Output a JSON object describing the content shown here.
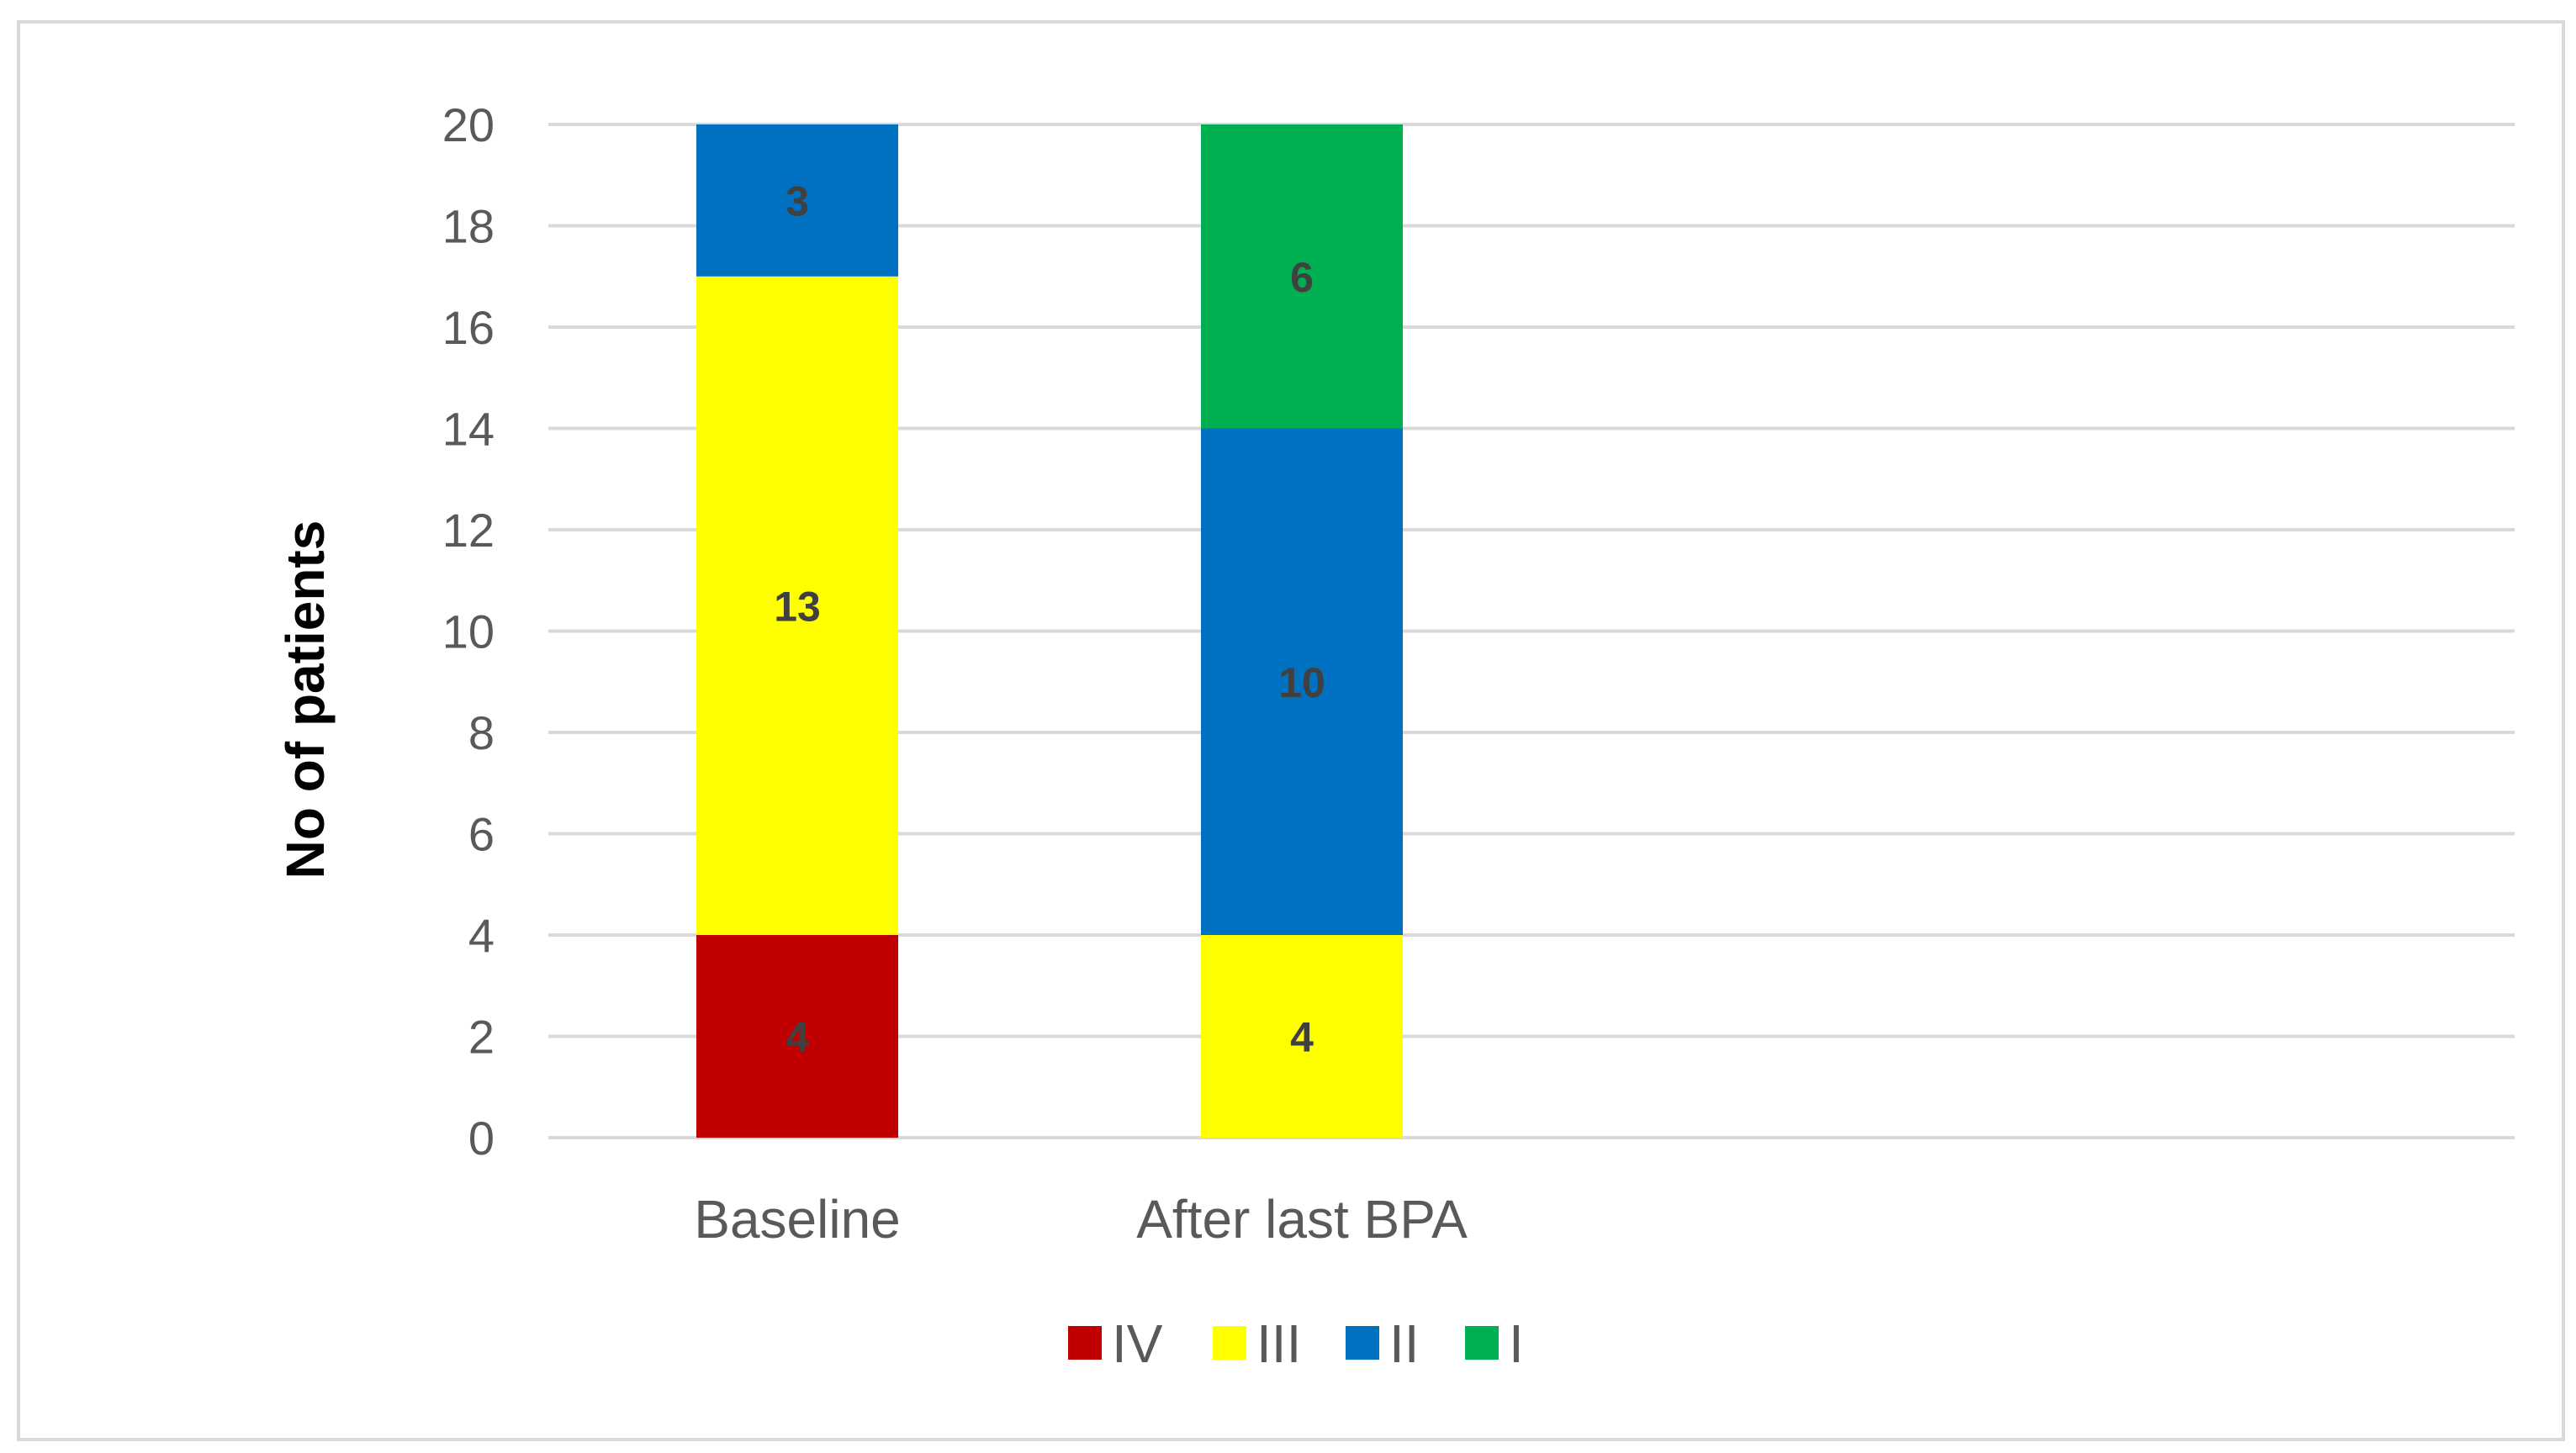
{
  "chart_data": {
    "type": "bar",
    "stacked": true,
    "title": "",
    "xlabel": "",
    "ylabel": "No of patients",
    "ylim": [
      0,
      20
    ],
    "ytick_step": 2,
    "grid": true,
    "legend_position": "bottom",
    "categories": [
      "Baseline",
      "After last BPA"
    ],
    "series": [
      {
        "name": "IV",
        "color": "#c00000",
        "values": [
          4,
          0
        ]
      },
      {
        "name": "III",
        "color": "#ffff00",
        "values": [
          13,
          4
        ]
      },
      {
        "name": "II",
        "color": "#0070c0",
        "values": [
          3,
          10
        ]
      },
      {
        "name": "I",
        "color": "#00b050",
        "values": [
          0,
          6
        ]
      }
    ]
  }
}
